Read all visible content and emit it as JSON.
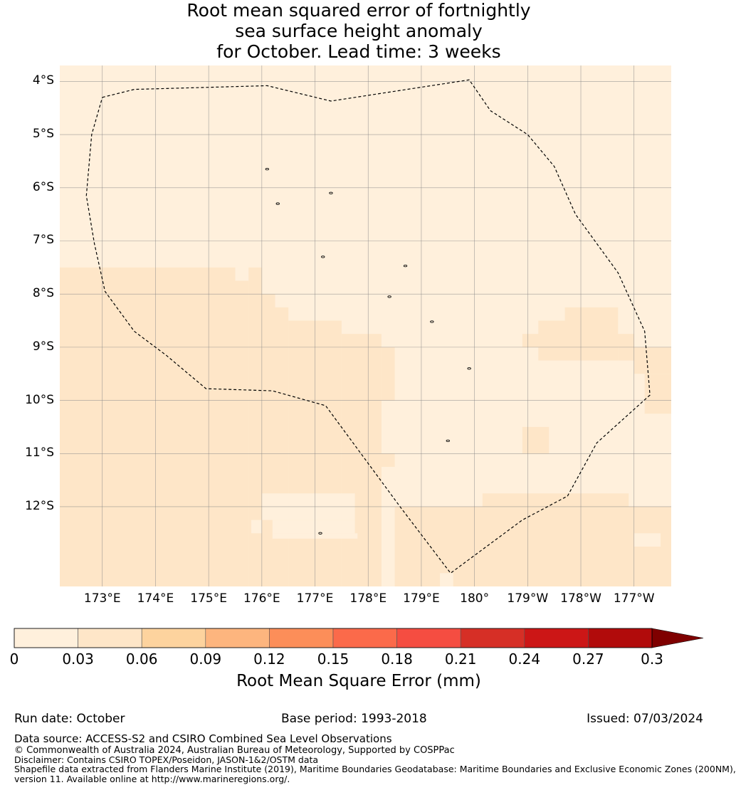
{
  "title": {
    "line1": "Root mean squared error of fortnightly",
    "line2": "sea surface height anomaly",
    "line3": "for October. Lead time: 3 weeks"
  },
  "map": {
    "lat_labels": [
      "4°S",
      "5°S",
      "6°S",
      "7°S",
      "8°S",
      "9°S",
      "10°S",
      "11°S",
      "12°S"
    ],
    "lon_labels": [
      "173°E",
      "174°E",
      "175°E",
      "176°E",
      "177°E",
      "178°E",
      "179°E",
      "180°",
      "179°W",
      "178°W",
      "177°W"
    ],
    "lat_range": [
      -3.7,
      -13.5
    ],
    "lon_range": [
      172.2,
      183.7
    ],
    "colors": {
      "bin0": "#fff0dc",
      "bin1": "#fee6c8",
      "boundary": "#000000",
      "grid": "#888888"
    },
    "eez_boundary_lonlat": [
      [
        173.0,
        -4.3
      ],
      [
        173.6,
        -4.15
      ],
      [
        176.1,
        -4.08
      ],
      [
        177.3,
        -4.37
      ],
      [
        179.9,
        -3.97
      ],
      [
        180.3,
        -4.55
      ],
      [
        181.0,
        -5.0
      ],
      [
        181.5,
        -5.6
      ],
      [
        181.9,
        -6.5
      ],
      [
        182.7,
        -7.6
      ],
      [
        183.2,
        -8.7
      ],
      [
        183.3,
        -9.9
      ],
      [
        182.3,
        -10.8
      ],
      [
        181.75,
        -11.8
      ],
      [
        180.9,
        -12.25
      ],
      [
        179.55,
        -13.25
      ],
      [
        178.6,
        -12.0
      ],
      [
        177.2,
        -10.1
      ],
      [
        176.2,
        -9.82
      ],
      [
        174.95,
        -9.78
      ],
      [
        174.2,
        -9.15
      ],
      [
        173.6,
        -8.7
      ],
      [
        173.05,
        -7.95
      ],
      [
        172.85,
        -7.05
      ],
      [
        172.7,
        -6.15
      ],
      [
        172.8,
        -5.0
      ],
      [
        173.0,
        -4.3
      ]
    ],
    "islands_lonlat": [
      [
        176.1,
        -5.65
      ],
      [
        176.3,
        -6.3
      ],
      [
        177.3,
        -6.1
      ],
      [
        177.15,
        -7.3
      ],
      [
        178.7,
        -7.47
      ],
      [
        178.4,
        -8.05
      ],
      [
        179.2,
        -8.52
      ],
      [
        179.9,
        -9.4
      ],
      [
        179.5,
        -10.76
      ],
      [
        177.1,
        -12.5
      ]
    ],
    "raster_bin1_cells_lonlat": [
      [
        172.2,
        -7.5,
        175.5,
        -13.5
      ],
      [
        175.5,
        -7.75,
        175.75,
        -13.5
      ],
      [
        175.75,
        -7.5,
        176.0,
        -13.5
      ],
      [
        176.0,
        -8.0,
        176.25,
        -13.5
      ],
      [
        176.25,
        -8.25,
        176.5,
        -13.5
      ],
      [
        176.5,
        -8.5,
        177.5,
        -13.5
      ],
      [
        177.5,
        -8.75,
        178.25,
        -13.5
      ],
      [
        178.25,
        -9.0,
        178.5,
        -10.0
      ],
      [
        178.25,
        -10.0,
        178.0,
        -13.5
      ],
      [
        178.0,
        -10.0,
        178.25,
        -11.0
      ],
      [
        178.25,
        -11.0,
        178.5,
        -11.25
      ],
      [
        178.0,
        -11.25,
        178.25,
        -11.5
      ],
      [
        178.25,
        -11.25,
        178.5,
        -11.25
      ],
      [
        178.5,
        -12.0,
        183.5,
        -13.5
      ],
      [
        180.15,
        -11.75,
        182.9,
        -12.0
      ],
      [
        180.9,
        -8.75,
        182.7,
        -9.0
      ],
      [
        181.2,
        -8.5,
        182.7,
        -9.25
      ],
      [
        181.7,
        -8.25,
        182.7,
        -8.5
      ],
      [
        182.7,
        -8.75,
        183.0,
        -9.25
      ],
      [
        183.0,
        -9.0,
        183.7,
        -9.5
      ],
      [
        183.2,
        -9.5,
        183.7,
        -10.25
      ],
      [
        180.9,
        -10.5,
        181.4,
        -11.0
      ],
      [
        183.0,
        -12.0,
        183.7,
        -13.5
      ]
    ],
    "raster_bin0_holes_lonlat": [
      [
        175.8,
        -12.25,
        176.0,
        -12.5
      ],
      [
        176.0,
        -11.75,
        177.75,
        -12.25
      ],
      [
        176.2,
        -12.25,
        177.75,
        -12.5
      ],
      [
        176.2,
        -12.5,
        177.8,
        -12.6
      ],
      [
        183.0,
        -12.5,
        183.5,
        -12.75
      ],
      [
        183.5,
        -12.75,
        183.7,
        -12.75
      ],
      [
        179.35,
        -13.25,
        179.6,
        -13.5
      ],
      [
        182.45,
        -9.25,
        182.7,
        -9.5
      ],
      [
        175.5,
        -7.5,
        175.75,
        -7.75
      ]
    ]
  },
  "colorbar": {
    "ticks": [
      "0",
      "0.03",
      "0.06",
      "0.09",
      "0.12",
      "0.15",
      "0.18",
      "0.21",
      "0.24",
      "0.27",
      "0.3"
    ],
    "colors": [
      "#fff0dc",
      "#fee6c8",
      "#fdd39e",
      "#fdb57e",
      "#fc8e59",
      "#fb6a4a",
      "#f54d41",
      "#d62f26",
      "#cc1616",
      "#b10b0b"
    ],
    "extend_color": "#7f0000",
    "label": "Root Mean Square Error (mm)"
  },
  "footer": {
    "run_date": "Run date: October",
    "base_period": "Base period: 1993-2018",
    "issued": "Issued: 07/03/2024",
    "data_source": "Data source: ACCESS-S2 and CSIRO Combined Sea Level Observations",
    "copyright": "© Commonwealth of Australia 2024, Australian Bureau of Meteorology, Supported by COSPPac",
    "disclaimer": "Disclaimer: Contains CSIRO TOPEX/Poseidon, JASON-1&2/OSTM data",
    "shapefile_line1": "Shapefile data extracted from Flanders Marine Institute (2019), Maritime Boundaries Geodatabase: Maritime Boundaries and Exclusive Economic Zones (200NM),",
    "shapefile_line2": "version 11. Available online at http://www.marineregions.org/."
  }
}
